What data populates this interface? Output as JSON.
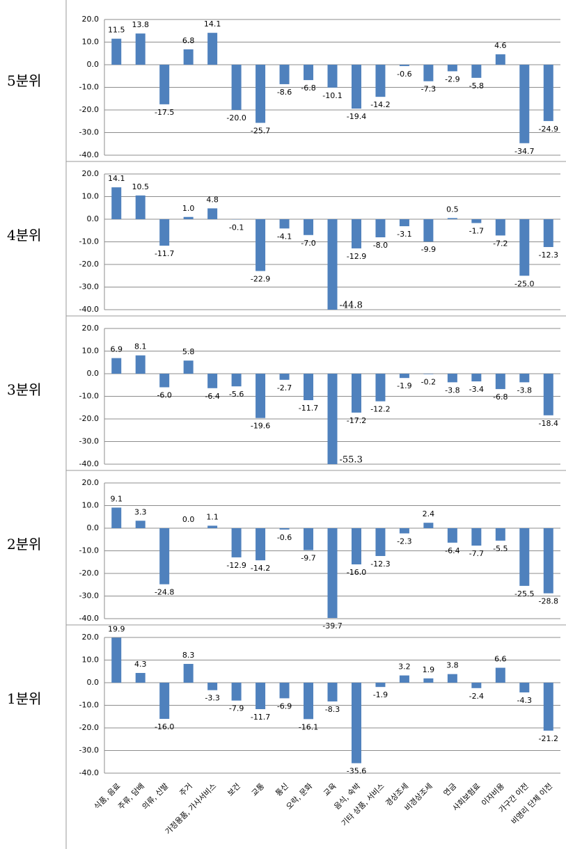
{
  "chart_data": {
    "type": "bar",
    "color": "#4f81bd",
    "categories": [
      "식품, 음료",
      "주류, 담배",
      "의류, 신발",
      "주거",
      "가정용품, 가사서비스",
      "보건",
      "교통",
      "통신",
      "오락, 문화",
      "교육",
      "음식, 숙박",
      "기타 상품, 서비스",
      "경상조세",
      "비경상조세",
      "연금",
      "사회보험료",
      "이자비용",
      "가구간 이전",
      "비영리 단체 이전"
    ],
    "ylim": [
      -40,
      20
    ],
    "yticks": [
      {
        "value": 20,
        "label": "20.0"
      },
      {
        "value": 10,
        "label": "10.0"
      },
      {
        "value": 0,
        "label": "0.0"
      },
      {
        "value": -10,
        "label": "-10.0"
      },
      {
        "value": -20,
        "label": "-20.0"
      },
      {
        "value": -30,
        "label": "-30.0"
      },
      {
        "value": -40,
        "label": "-40.0"
      }
    ],
    "grid": true,
    "series": [
      {
        "name": "5분위",
        "values": [
          11.5,
          13.8,
          -17.5,
          6.8,
          14.1,
          -20.0,
          -25.7,
          -8.6,
          -6.8,
          -10.1,
          -19.4,
          -14.2,
          -0.6,
          -7.3,
          -2.9,
          -5.8,
          4.6,
          -34.7,
          -24.9
        ],
        "value_labels": [
          "11.5",
          "13.8",
          "-17.5",
          "6.8",
          "14.1",
          "-20.0",
          "-25.7",
          "-8.6",
          "-6.8",
          "-10.1",
          "-19.4",
          "-14.2",
          "-0.6",
          "-7.3",
          "-2.9",
          "-5.8",
          "4.6",
          "-34.7",
          "-24.9"
        ]
      },
      {
        "name": "4분위",
        "values": [
          14.1,
          10.5,
          -11.7,
          1.0,
          4.8,
          -0.1,
          -22.9,
          -4.1,
          -7.0,
          -44.8,
          -12.9,
          -8.0,
          -3.1,
          -9.9,
          0.5,
          -1.7,
          -7.2,
          -25.0,
          -12.3
        ],
        "value_labels": [
          "14.1",
          "10.5",
          "-11.7",
          "1.0",
          "4.8",
          "-0.1",
          "-22.9",
          "-4.1",
          "-7.0",
          "-44.8",
          "-12.9",
          "-8.0",
          "-3.1",
          "-9.9",
          "0.5",
          "-1.7",
          "-7.2",
          "-25.0",
          "-12.3"
        ]
      },
      {
        "name": "3분위",
        "values": [
          6.9,
          8.1,
          -6.0,
          5.8,
          -6.4,
          -5.6,
          -19.6,
          -2.7,
          -11.7,
          -55.3,
          -17.2,
          -12.2,
          -1.9,
          -0.2,
          -3.8,
          -3.4,
          -6.8,
          -3.8,
          -18.4
        ],
        "value_labels": [
          "6.9",
          "8.1",
          "-6.0",
          "5.8",
          "-6.4",
          "-5.6",
          "-19.6",
          "-2.7",
          "-11.7",
          "-55.3",
          "-17.2",
          "-12.2",
          "-1.9",
          "-0.2",
          "-3.8",
          "-3.4",
          "-6.8",
          "-3.8",
          "-18.4"
        ]
      },
      {
        "name": "2분위",
        "values": [
          9.1,
          3.3,
          -24.8,
          0.0,
          1.1,
          -12.9,
          -14.2,
          -0.6,
          -9.7,
          -39.7,
          -16.0,
          -12.3,
          -2.3,
          2.4,
          -6.4,
          -7.7,
          -5.5,
          -25.5,
          -28.8
        ],
        "value_labels": [
          "9.1",
          "3.3",
          "-24.8",
          "0.0",
          "1.1",
          "-12.9",
          "-14.2",
          "-0.6",
          "-9.7",
          "-39.7",
          "-16.0",
          "-12.3",
          "-2.3",
          "2.4",
          "-6.4",
          "-7.7",
          "-5.5",
          "-25.5",
          "-28.8"
        ]
      },
      {
        "name": "1분위",
        "values": [
          19.9,
          4.3,
          -16.0,
          8.3,
          -3.3,
          -7.9,
          -11.7,
          -6.9,
          -16.1,
          -8.3,
          -35.6,
          -1.9,
          3.2,
          1.9,
          3.8,
          -2.4,
          6.6,
          -4.3,
          -21.2
        ],
        "value_labels": [
          "19.9",
          "4.3",
          "-16.0",
          "8.3",
          "-3.3",
          "-7.9",
          "-11.7",
          "-6.9",
          "-16.1",
          "-8.3",
          "-35.6",
          "-1.9",
          "3.2",
          "1.9",
          "3.8",
          "-2.4",
          "6.6",
          "-4.3",
          "-21.2"
        ]
      }
    ]
  }
}
